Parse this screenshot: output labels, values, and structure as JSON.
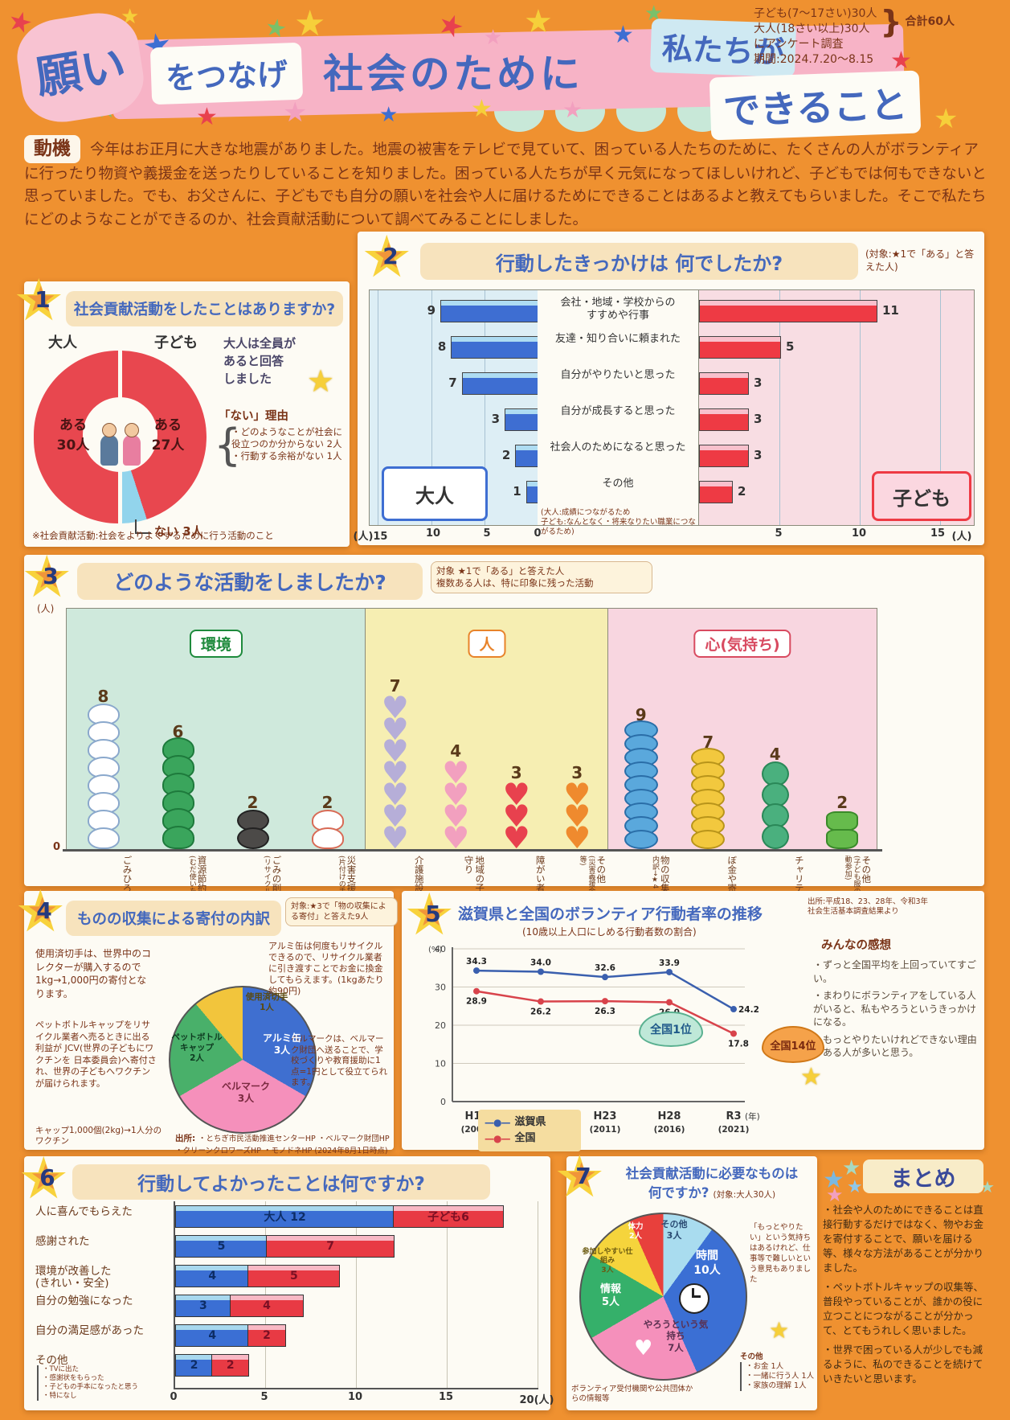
{
  "poster": {
    "bg_color": "#ef9130",
    "title": {
      "p1": "願い",
      "p2": "をつなげ",
      "p3": "社会のために",
      "p4": "私たちが",
      "p5": "できること"
    },
    "survey": {
      "l1": "子ども(7〜17さい)30人",
      "l2": "大人(18さい以上)30人",
      "total": "合計60人",
      "l3": "にアンケート調査",
      "l4": "期間:2024.7.20〜8.15"
    }
  },
  "motivation": {
    "label": "動機",
    "text": "今年はお正月に大きな地震がありました。地震の被害をテレビで見ていて、困っている人たちのために、たくさんの人がボランティアに行ったり物資や義援金を送ったりしていることを知りました。困っている人たちが早く元気になってほしいけれど、子どもでは何もできないと思っていました。でも、お父さんに、子どもでも自分の願いを社会や人に届けるためにできることはあるよと教えてもらいました。そこで私たちにどのようなことができるのか、社会貢献活動について調べてみることにしました。"
  },
  "s1": {
    "num": "1",
    "title": "社会貢献活動をしたことはありますか?",
    "adult": "大人",
    "child": "子ども",
    "aru_adult": "ある\n30人",
    "aru_child": "ある\n27人",
    "nai": "ない 3人",
    "answered_note": "大人は全員が\nあると回答\nしました",
    "reason_title": "「ない」理由",
    "reasons": [
      "・どのようなことが社会に役立つのか分からない 2人",
      "・行動する余裕がない 1人"
    ],
    "footnote": "※社会貢献活動:社会をよりよくするために行う活動のこと"
  },
  "s2": {
    "num": "2",
    "title": "行動したきっかけは 何でしたか?",
    "target": "(対象:★1で「ある」と答えた人)",
    "adult_card": "大人",
    "child_card": "子ども",
    "other_note": "(大人:成績につながるため\n子ども:なんとなく・将来なりたい職業につながるため)"
  },
  "s3": {
    "num": "3",
    "title": "どのような活動をしましたか?",
    "target1": "対象 ★1で「ある」と答えた人",
    "target2": "複数ある人は、特に印象に残った活動",
    "unit": "(人)",
    "zero": "0"
  },
  "s4": {
    "num": "4",
    "title": "ものの収集による寄付の内訳",
    "target": "対象:★3で「物の収集による寄付」と答えた9人",
    "p_stamp": "使用済切手は、世界中のコレクターが購入するので 1kg→1,000円の寄付となります。",
    "p_cap": "ペットボトルキャップをリサイクル業者へ売るときに出る利益が JCV(世界の子どもにワクチンを 日本委員会)へ寄付され、世界の子どもへワクチンが届けられます。",
    "p_cap2": "キャップ1,000個(2kg)→1人分のワクチン",
    "p_alumi": "アルミ缶は何度もリサイクルできるので、リサイクル業者に引き渡すことでお金に換金してもらえます。(1kgあたり約90円)",
    "p_bell": "ベルマークは、ベルマーク財団へ送ることで、学校づくりや教育援助に1点=1円として役立てられます。",
    "source_label": "出所",
    "sources": [
      "・とちぎ市民活動推進センターHP",
      "・ベルマーク財団HP",
      "・クリーンクロワーズHP",
      "・モノドネHP"
    ],
    "source_date": "(2024年8月1日時点)"
  },
  "s5": {
    "num": "5",
    "title": "滋賀県と全国のボランティア行動者率の推移",
    "subtitle": "(10歳以上人口にしめる行動者数の割合)",
    "source1": "出所:平成18、23、28年、令和3年",
    "source2": "社会生活基本調査結果より",
    "bubble1": "全国1位",
    "bubble2": "全国14位",
    "kanso_title": "みんなの感想",
    "kanso": [
      "・ずっと全国平均を上回っていてすごい。",
      "・まわりにボランティアをしている人がいると、私もやろうというきっかけになる。",
      "・もっとやりたいけれどできない理由がある人が多いと思う。"
    ]
  },
  "s6": {
    "num": "6",
    "title": "行動してよかったことは何ですか?",
    "other_notes": [
      "・TVに出た",
      "・感謝状をもらった",
      "・子どもの手本になったと思う",
      "・特になし"
    ]
  },
  "s7": {
    "num": "7",
    "title1": "社会貢献活動に必要なものは",
    "title2": "何ですか?",
    "target": "(対象:大人30人)",
    "note": "「もっとやりたい」という気持ちはあるけれど、仕事等で難しいという意見もありました",
    "other_title": "その他",
    "other_items": [
      "・お金 1人",
      "・一緒に行う人 1人",
      "・家族の理解 1人"
    ],
    "info_note": "ボランティア受付機関や公共団体からの情報等"
  },
  "summary": {
    "title": "まとめ",
    "paras": [
      "・社会や人のためにできることは直接行動するだけではなく、物やお金を寄付することで、願いを届ける等、様々な方法があることが分かりました。",
      "・ペットボトルキャップの収集等、普段やっていることが、誰かの役に立つことにつながることが分かって、とてもうれしく思いました。",
      "・世界で困っている人が少しでも減るように、私のできることを続けていきたいと思います。"
    ]
  },
  "chart_data": [
    {
      "id": "q1",
      "type": "pie",
      "question": "社会貢献活動をしたことはありますか?",
      "unit": "人",
      "groups": [
        {
          "name": "大人",
          "slices": [
            {
              "label": "ある",
              "value": 30,
              "color": "#e8474f"
            }
          ]
        },
        {
          "name": "子ども",
          "slices": [
            {
              "label": "ある",
              "value": 27,
              "color": "#e8474f"
            },
            {
              "label": "ない",
              "value": 3,
              "color": "#92d4ec"
            }
          ]
        }
      ]
    },
    {
      "id": "q2",
      "type": "bar",
      "orientation": "horizontal-diverging",
      "question": "行動したきっかけは何でしたか?",
      "unit": "(人)",
      "xlim": [
        0,
        15
      ],
      "ticks": [
        0,
        5,
        10,
        15
      ],
      "categories": [
        "会社・地域・学校からの\nすすめや行事",
        "友達・知り合いに頼まれた",
        "自分がやりたいと思った",
        "自分が成長すると思った",
        "社会人のためになると思った",
        "その他"
      ],
      "series": [
        {
          "name": "大人",
          "color": "#3e6ed2",
          "light": "#aedcf2",
          "values": [
            9,
            8,
            7,
            3,
            2,
            1
          ]
        },
        {
          "name": "子ども",
          "color": "#ee3a44",
          "light": "#f8c0cc",
          "values": [
            11,
            5,
            3,
            3,
            3,
            2
          ]
        }
      ]
    },
    {
      "id": "q3",
      "type": "pictograph",
      "question": "どのような活動をしましたか?",
      "unit": "人",
      "groups": [
        {
          "name": "環境",
          "bg": "#cfe9dc",
          "color": "#1e8a3c",
          "items": [
            {
              "label": "ごみひろい・そうじ",
              "value": 8,
              "icon": "bag-white"
            },
            {
              "label": "資源節約",
              "sub": "(むだ使いをへらす)",
              "value": 6,
              "icon": "tree"
            },
            {
              "label": "ごみの削減",
              "sub": "(リサイクル推進)",
              "value": 2,
              "icon": "bag-black"
            },
            {
              "label": "災害支援",
              "sub": "(片付けの手伝い)",
              "value": 2,
              "icon": "glove"
            }
          ]
        },
        {
          "name": "人",
          "bg": "#f6eeb2",
          "color": "#e8832a",
          "items": [
            {
              "label": "介護施設訪問",
              "value": 7,
              "icon": "heart-purple"
            },
            {
              "label": "地域の子どもの世話・見守り",
              "value": 4,
              "icon": "heart-pink"
            },
            {
              "label": "障がい者支援",
              "value": 3,
              "icon": "heart-red"
            },
            {
              "label": "その他",
              "sub": "(災害義援金・寄付のお金集め 等)",
              "value": 3,
              "icon": "heart-orange"
            }
          ]
        },
        {
          "name": "心(気持ち)",
          "bg": "#f8d6e0",
          "color": "#d84a60",
          "items": [
            {
              "label": "物の収集による寄付",
              "sub": "内訳→★4",
              "value": 9,
              "icon": "coin-blue"
            },
            {
              "label": "ぼ金や寄付",
              "value": 7,
              "icon": "coin-yellow"
            },
            {
              "label": "チャリティイベント参加",
              "value": 4,
              "icon": "earth"
            },
            {
              "label": "その他",
              "sub": "(子ども服の寄付・アドベント活動参加)",
              "value": 2,
              "icon": "shirt"
            }
          ]
        }
      ]
    },
    {
      "id": "q4",
      "type": "pie",
      "question": "ものの収集による寄付の内訳",
      "unit": "人",
      "start_deg": 320,
      "slices": [
        {
          "label": "使用済切手",
          "value": 1,
          "color": "#f2c53c"
        },
        {
          "label": "アルミ缶",
          "value": 3,
          "color": "#3f6fd0"
        },
        {
          "label": "ベルマーク",
          "value": 3,
          "color": "#f590bb"
        },
        {
          "label": "ペットボトルキャップ",
          "value": 2,
          "color": "#49b06a"
        }
      ]
    },
    {
      "id": "q5",
      "type": "line",
      "question": "滋賀県と全国のボランティア行動者率の推移",
      "ylabel": "(%)",
      "xlabel": "(年)",
      "ylim": [
        0,
        40
      ],
      "yticks": [
        0,
        10,
        20,
        30,
        40
      ],
      "x": [
        "H13",
        "H18",
        "H23",
        "H28",
        "R3"
      ],
      "x_sub": [
        "(2001)",
        "(2006)",
        "(2011)",
        "(2016)",
        "(2021)"
      ],
      "series": [
        {
          "name": "滋賀県",
          "color": "#3a5fae",
          "values": [
            34.3,
            34.0,
            32.6,
            33.9,
            24.2
          ]
        },
        {
          "name": "全国",
          "color": "#d8434b",
          "values": [
            28.9,
            26.2,
            26.3,
            26.0,
            17.8
          ]
        }
      ]
    },
    {
      "id": "q6",
      "type": "bar",
      "orientation": "horizontal-stacked",
      "question": "行動してよかったことは何ですか?",
      "unit": "(人)",
      "xlim": [
        0,
        20
      ],
      "ticks": [
        0,
        5,
        10,
        15,
        20
      ],
      "categories": [
        "人に喜んでもらえた",
        "感謝された",
        "環境が改善した\n(きれい・安全)",
        "自分の勉強になった",
        "自分の満足感があった",
        "その他"
      ],
      "series": [
        {
          "name": "大人",
          "color": "#3b6fd4",
          "light": "#a8d8ee",
          "values": [
            12,
            5,
            4,
            3,
            4,
            2
          ]
        },
        {
          "name": "子ども",
          "color": "#e83a44",
          "light": "#f8b8c4",
          "values": [
            6,
            7,
            5,
            4,
            2,
            2
          ]
        }
      ]
    },
    {
      "id": "q7",
      "type": "pie",
      "question": "社会貢献活動に必要なものは何ですか?",
      "unit": "人",
      "start_deg": 0,
      "slices": [
        {
          "label": "その他",
          "value": 3,
          "color": "#a9dcef"
        },
        {
          "label": "時間",
          "value": 10,
          "color": "#3b6fd4"
        },
        {
          "label": "やろうという気持ち",
          "value": 7,
          "color": "#f590bb"
        },
        {
          "label": "情報",
          "value": 5,
          "color": "#35b06a"
        },
        {
          "label": "参加しやすい仕組み",
          "value": 3,
          "color": "#f5d43c"
        },
        {
          "label": "体力",
          "value": 2,
          "color": "#e8403c"
        }
      ]
    }
  ]
}
